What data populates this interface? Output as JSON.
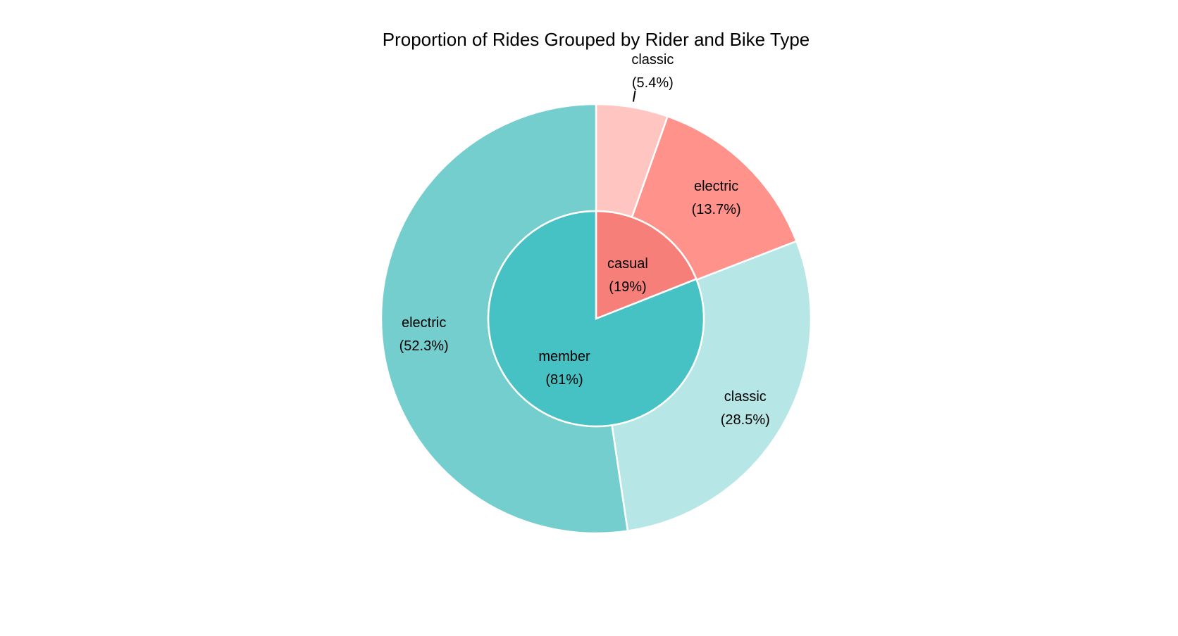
{
  "chart_data": {
    "type": "pie",
    "variant": "nested-donut",
    "title": "Proportion of Rides Grouped by Rider and Bike Type",
    "inner_ring": [
      {
        "name": "casual",
        "percent_label": "(19%)",
        "value": 19,
        "color": "#F67F7A"
      },
      {
        "name": "member",
        "percent_label": "(81%)",
        "value": 81,
        "color": "#46C1C4"
      }
    ],
    "outer_ring": [
      {
        "name": "classic",
        "percent_label": "(5.4%)",
        "value": 5.4,
        "group": "casual",
        "color": "#FFC5C1"
      },
      {
        "name": "electric",
        "percent_label": "(13.7%)",
        "value": 13.7,
        "group": "casual",
        "color": "#FF928A"
      },
      {
        "name": "classic",
        "percent_label": "(28.5%)",
        "value": 28.5,
        "group": "member",
        "color": "#B7E6E6"
      },
      {
        "name": "electric",
        "percent_label": "(52.3%)",
        "value": 52.3,
        "group": "member",
        "color": "#74CECE"
      }
    ],
    "start_angle": "12 o'clock",
    "direction": "clockwise",
    "slice_border_color": "#FFFFFF"
  }
}
